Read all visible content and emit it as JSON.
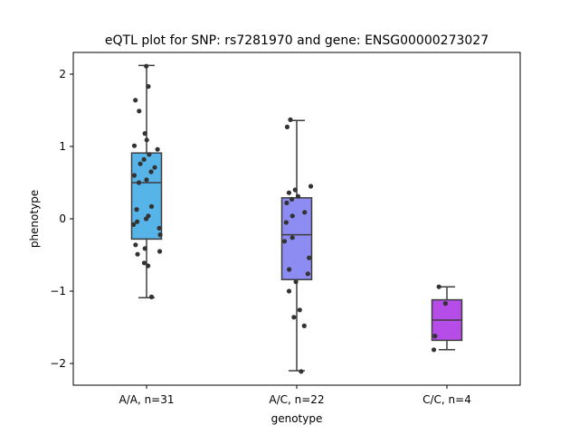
{
  "chart_data": {
    "type": "box",
    "title": "eQTL plot for SNP: rs7281970 and gene: ENSG00000273027",
    "xlabel": "genotype",
    "ylabel": "phenotype",
    "ylim": [
      -2.3,
      2.3
    ],
    "yticks": [
      2,
      1,
      0,
      -1,
      -2
    ],
    "ytick_labels": [
      "2",
      "1",
      "0",
      "−1",
      "−2"
    ],
    "categories": [
      "A/A, n=31",
      "A/C, n=22",
      "C/C, n=4"
    ],
    "colors": [
      "#56b4e9",
      "#8c8cf2",
      "#b64de8"
    ],
    "boxes": [
      {
        "category": "A/A, n=31",
        "whisker_low": -1.09,
        "q1": -0.28,
        "median": 0.5,
        "q3": 0.91,
        "whisker_high": 2.12
      },
      {
        "category": "A/C, n=22",
        "whisker_low": -2.1,
        "q1": -0.84,
        "median": -0.22,
        "q3": 0.29,
        "whisker_high": 1.36
      },
      {
        "category": "C/C, n=4",
        "whisker_low": -1.81,
        "q1": -1.68,
        "median": -1.4,
        "q3": -1.12,
        "whisker_high": -0.94
      }
    ],
    "points": [
      [
        2.11,
        1.83,
        1.64,
        1.49,
        1.18,
        1.09,
        1.01,
        0.96,
        0.89,
        0.82,
        0.76,
        0.71,
        0.65,
        0.6,
        0.54,
        0.5,
        0.17,
        0.13,
        0.04,
        0.0,
        -0.04,
        -0.08,
        -0.13,
        -0.22,
        -0.36,
        -0.41,
        -0.45,
        -0.49,
        -0.61,
        -0.65,
        -1.08
      ],
      [
        1.37,
        1.27,
        0.45,
        0.4,
        0.36,
        0.31,
        0.27,
        0.22,
        0.09,
        0.04,
        -0.26,
        -0.31,
        -0.54,
        -0.7,
        -0.76,
        -0.87,
        -1.0,
        -1.26,
        -1.36,
        -1.48,
        -2.11,
        -0.05
      ],
      [
        -0.94,
        -1.17,
        -1.62,
        -1.81
      ]
    ]
  }
}
